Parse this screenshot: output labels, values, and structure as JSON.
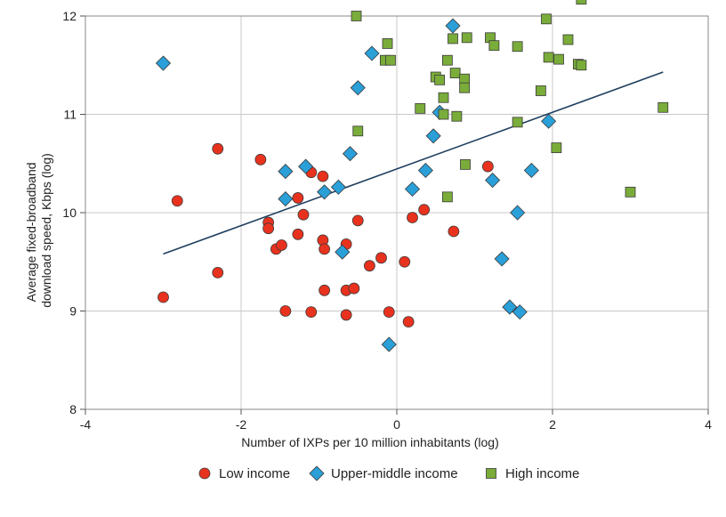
{
  "chart_data": {
    "type": "scatter",
    "xlabel": "Number of IXPs per 10 million inhabitants (log)",
    "ylabel_lines": [
      "Average fixed-broadband",
      "download speed, Kbps (log)"
    ],
    "xlim": [
      -4,
      4
    ],
    "ylim": [
      8,
      12
    ],
    "xticks": [
      "-4",
      "-2",
      "0",
      "2",
      "4"
    ],
    "yticks": [
      "8",
      "9",
      "10",
      "11",
      "12"
    ],
    "grid": true,
    "legend_position": "bottom",
    "fit_line": {
      "x": [
        -3.0,
        3.42
      ],
      "y": [
        9.58,
        11.43
      ],
      "color": "#1f3f5f"
    },
    "series": [
      {
        "name": "Low income",
        "marker": "circle",
        "color": "#e8321e",
        "points": [
          [
            -3.0,
            9.14
          ],
          [
            -2.82,
            10.12
          ],
          [
            -2.3,
            10.65
          ],
          [
            -2.3,
            9.39
          ],
          [
            -1.75,
            10.54
          ],
          [
            -1.65,
            9.9
          ],
          [
            -1.65,
            9.84
          ],
          [
            -1.55,
            9.63
          ],
          [
            -1.48,
            9.67
          ],
          [
            -1.43,
            9.0
          ],
          [
            -1.27,
            10.15
          ],
          [
            -1.27,
            9.78
          ],
          [
            -1.2,
            9.98
          ],
          [
            -1.1,
            10.41
          ],
          [
            -1.1,
            8.99
          ],
          [
            -0.95,
            10.37
          ],
          [
            -0.95,
            9.72
          ],
          [
            -0.93,
            9.63
          ],
          [
            -0.93,
            9.21
          ],
          [
            -0.65,
            9.68
          ],
          [
            -0.65,
            9.21
          ],
          [
            -0.65,
            8.96
          ],
          [
            -0.55,
            9.23
          ],
          [
            -0.5,
            9.92
          ],
          [
            -0.35,
            9.46
          ],
          [
            -0.2,
            9.54
          ],
          [
            -0.1,
            8.99
          ],
          [
            0.1,
            9.5
          ],
          [
            0.15,
            8.89
          ],
          [
            0.2,
            9.95
          ],
          [
            0.35,
            10.03
          ],
          [
            0.73,
            9.81
          ],
          [
            1.17,
            10.47
          ]
        ]
      },
      {
        "name": "Upper-middle income",
        "marker": "diamond",
        "color": "#2a9fd8",
        "points": [
          [
            -3.0,
            11.52
          ],
          [
            -1.43,
            10.42
          ],
          [
            -1.43,
            10.14
          ],
          [
            -1.17,
            10.47
          ],
          [
            -0.93,
            10.21
          ],
          [
            -0.75,
            10.26
          ],
          [
            -0.7,
            9.6
          ],
          [
            -0.6,
            10.6
          ],
          [
            -0.5,
            11.27
          ],
          [
            -0.32,
            11.62
          ],
          [
            -0.1,
            8.66
          ],
          [
            0.2,
            10.24
          ],
          [
            0.37,
            10.43
          ],
          [
            0.47,
            10.78
          ],
          [
            0.55,
            11.02
          ],
          [
            0.72,
            11.9
          ],
          [
            1.23,
            10.33
          ],
          [
            1.35,
            9.53
          ],
          [
            1.45,
            9.04
          ],
          [
            1.55,
            10.0
          ],
          [
            1.58,
            8.99
          ],
          [
            1.73,
            10.43
          ],
          [
            1.95,
            10.93
          ]
        ]
      },
      {
        "name": "High income",
        "marker": "square",
        "color": "#7aac3a",
        "points": [
          [
            -0.52,
            12.0
          ],
          [
            -0.5,
            10.83
          ],
          [
            -0.15,
            11.55
          ],
          [
            -0.12,
            11.72
          ],
          [
            -0.08,
            11.55
          ],
          [
            0.3,
            11.06
          ],
          [
            0.5,
            11.38
          ],
          [
            0.55,
            11.35
          ],
          [
            0.6,
            11.17
          ],
          [
            0.6,
            11.0
          ],
          [
            0.65,
            11.55
          ],
          [
            0.65,
            10.16
          ],
          [
            0.72,
            11.77
          ],
          [
            0.75,
            11.42
          ],
          [
            0.77,
            10.98
          ],
          [
            0.87,
            11.36
          ],
          [
            0.87,
            11.27
          ],
          [
            0.88,
            10.49
          ],
          [
            0.9,
            11.78
          ],
          [
            1.2,
            11.78
          ],
          [
            1.25,
            11.7
          ],
          [
            1.55,
            11.69
          ],
          [
            1.55,
            10.92
          ],
          [
            1.85,
            11.24
          ],
          [
            1.92,
            11.97
          ],
          [
            1.95,
            11.58
          ],
          [
            2.05,
            10.66
          ],
          [
            2.08,
            11.56
          ],
          [
            2.2,
            11.76
          ],
          [
            2.33,
            11.51
          ],
          [
            2.37,
            11.5
          ],
          [
            2.37,
            12.17
          ],
          [
            3.0,
            10.21
          ],
          [
            3.42,
            11.07
          ]
        ]
      }
    ]
  }
}
